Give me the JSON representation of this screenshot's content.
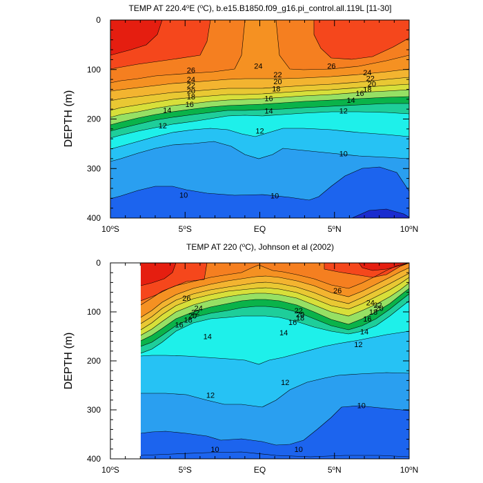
{
  "chart_data": [
    {
      "type": "contour",
      "title": "TEMP AT 220.4°E (°C), b.e15.B1850.f09_g16.pi_control.all.119L [11-30]",
      "title_parts": {
        "pre": "TEMP AT 220.4",
        "deg": "o",
        "mid": "E (",
        "deg2": "o",
        "post": "C), b.e15.B1850.f09_g16.pi_control.all.119L [11-30]"
      },
      "xlabel": "",
      "ylabel": "DEPTH (m)",
      "xlim": [
        -10,
        10
      ],
      "ylim": [
        400,
        0
      ],
      "x_ticks": [
        {
          "value": -10,
          "num": "10",
          "sup": "o",
          "suf": "S"
        },
        {
          "value": -5,
          "num": "5",
          "sup": "o",
          "suf": "S"
        },
        {
          "value": 0,
          "num": "EQ",
          "sup": "",
          "suf": ""
        },
        {
          "value": 5,
          "num": "5",
          "sup": "o",
          "suf": "N"
        },
        {
          "value": 10,
          "num": "10",
          "sup": "o",
          "suf": "N"
        }
      ],
      "y_ticks": [
        0,
        100,
        200,
        300,
        400
      ],
      "data_extent": [
        -10,
        10
      ],
      "contour_labels": [
        {
          "text": "26",
          "x": -4.6,
          "y": 101
        },
        {
          "text": "24",
          "x": -4.6,
          "y": 120
        },
        {
          "text": "22",
          "x": -4.6,
          "y": 132
        },
        {
          "text": "20",
          "x": -4.6,
          "y": 143
        },
        {
          "text": "18",
          "x": -4.6,
          "y": 155
        },
        {
          "text": "16",
          "x": -4.7,
          "y": 170
        },
        {
          "text": "14",
          "x": -6.2,
          "y": 182
        },
        {
          "text": "12",
          "x": -6.5,
          "y": 213
        },
        {
          "text": "10",
          "x": -5.1,
          "y": 353
        },
        {
          "text": "24",
          "x": -0.1,
          "y": 93
        },
        {
          "text": "22",
          "x": 1.2,
          "y": 110
        },
        {
          "text": "20",
          "x": 1.2,
          "y": 124
        },
        {
          "text": "18",
          "x": 1.1,
          "y": 139
        },
        {
          "text": "16",
          "x": 0.6,
          "y": 158
        },
        {
          "text": "14",
          "x": 0.6,
          "y": 183
        },
        {
          "text": "12",
          "x": 0.0,
          "y": 224
        },
        {
          "text": "10",
          "x": 1.0,
          "y": 355
        },
        {
          "text": "26",
          "x": 4.8,
          "y": 93
        },
        {
          "text": "24",
          "x": 7.2,
          "y": 106
        },
        {
          "text": "22",
          "x": 7.4,
          "y": 118
        },
        {
          "text": "20",
          "x": 7.5,
          "y": 129
        },
        {
          "text": "18",
          "x": 7.2,
          "y": 140
        },
        {
          "text": "16",
          "x": 6.7,
          "y": 148
        },
        {
          "text": "14",
          "x": 6.1,
          "y": 162
        },
        {
          "text": "12",
          "x": 5.6,
          "y": 183
        },
        {
          "text": "10",
          "x": 5.6,
          "y": 270
        }
      ]
    },
    {
      "type": "contour",
      "title": "TEMP AT 220 (°C), Johnson et al (2002)",
      "title_parts": {
        "pre": "TEMP AT 220 (",
        "deg": "o",
        "mid": "C), Johnson et al (2002)",
        "deg2": "",
        "post": ""
      },
      "xlabel": "",
      "ylabel": "DEPTH (m)",
      "xlim": [
        -10,
        10
      ],
      "ylim": [
        400,
        0
      ],
      "x_ticks": [
        {
          "value": -10,
          "num": "10",
          "sup": "o",
          "suf": "S"
        },
        {
          "value": -5,
          "num": "5",
          "sup": "o",
          "suf": "S"
        },
        {
          "value": 0,
          "num": "EQ",
          "sup": "",
          "suf": ""
        },
        {
          "value": 5,
          "num": "5",
          "sup": "o",
          "suf": "N"
        },
        {
          "value": 10,
          "num": "10",
          "sup": "o",
          "suf": "N"
        }
      ],
      "y_ticks": [
        0,
        100,
        200,
        300,
        400
      ],
      "data_extent": [
        -7.9,
        10
      ],
      "contour_labels": [
        {
          "text": "26",
          "x": -4.9,
          "y": 72
        },
        {
          "text": "24",
          "x": -4.1,
          "y": 92
        },
        {
          "text": "22",
          "x": -4.3,
          "y": 101
        },
        {
          "text": "20",
          "x": -4.5,
          "y": 108
        },
        {
          "text": "18",
          "x": -4.8,
          "y": 116
        },
        {
          "text": "16",
          "x": -5.4,
          "y": 126
        },
        {
          "text": "14",
          "x": -3.5,
          "y": 150
        },
        {
          "text": "12",
          "x": -3.3,
          "y": 270
        },
        {
          "text": "10",
          "x": -3.0,
          "y": 380
        },
        {
          "text": "22",
          "x": 2.6,
          "y": 97
        },
        {
          "text": "20",
          "x": 2.7,
          "y": 105
        },
        {
          "text": "18",
          "x": 2.7,
          "y": 112
        },
        {
          "text": "16",
          "x": 2.2,
          "y": 121
        },
        {
          "text": "14",
          "x": 1.6,
          "y": 142
        },
        {
          "text": "12",
          "x": 1.7,
          "y": 244
        },
        {
          "text": "10",
          "x": 2.6,
          "y": 380
        },
        {
          "text": "26",
          "x": 5.2,
          "y": 56
        },
        {
          "text": "24",
          "x": 7.4,
          "y": 81
        },
        {
          "text": "22",
          "x": 7.9,
          "y": 86
        },
        {
          "text": "20",
          "x": 8.0,
          "y": 92
        },
        {
          "text": "18",
          "x": 7.6,
          "y": 100
        },
        {
          "text": "16",
          "x": 7.2,
          "y": 114
        },
        {
          "text": "14",
          "x": 7.0,
          "y": 140
        },
        {
          "text": "12",
          "x": 6.6,
          "y": 166
        },
        {
          "text": "10",
          "x": 6.8,
          "y": 291
        }
      ]
    }
  ],
  "colors": {
    "t28": "#e51e10",
    "t26": "#f5471c",
    "t24": "#f57f20",
    "t22": "#f59122",
    "t20": "#f3b430",
    "t18": "#e9c833",
    "t16": "#d7df3a",
    "t14": "#96e064",
    "t13": "#0ab34a",
    "t12": "#1ece9a",
    "t11": "#1ef0ea",
    "t10": "#26c2f4",
    "t9": "#2a9ff0",
    "t8": "#1c64ee",
    "t7": "#1a2ccf"
  }
}
